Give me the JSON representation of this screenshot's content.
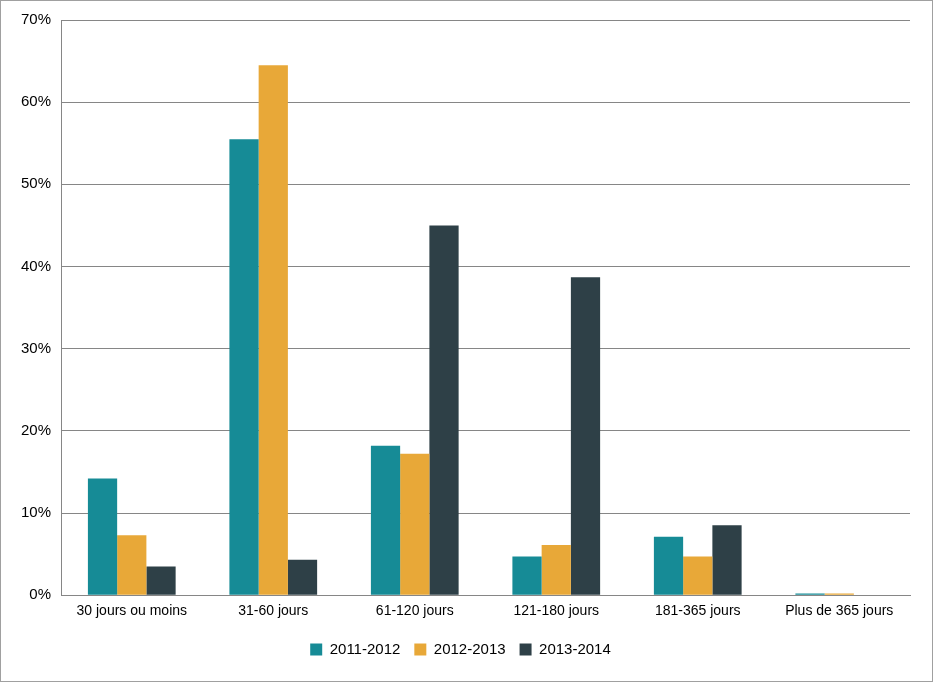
{
  "chart_data": {
    "type": "bar",
    "categories": [
      "30 jours ou moins",
      "31-60 jours",
      "61-120 jours",
      "121-180 jours",
      "181-365 jours",
      "Plus de 365 jours"
    ],
    "series": [
      {
        "name": "2011-2012",
        "color": "#168b96",
        "values": [
          14.2,
          55.5,
          18.2,
          4.7,
          7.1,
          0.2
        ]
      },
      {
        "name": "2012-2013",
        "color": "#e8a838",
        "values": [
          7.3,
          64.5,
          17.2,
          6.1,
          4.7,
          0.2
        ]
      },
      {
        "name": "2013-2014",
        "color": "#2e4047",
        "values": [
          3.5,
          4.3,
          45.0,
          38.7,
          8.5,
          0
        ]
      }
    ],
    "ylim": [
      0,
      70
    ],
    "yticks": [
      {
        "value": 0,
        "label": "0%"
      },
      {
        "value": 10,
        "label": "10%"
      },
      {
        "value": 20,
        "label": "20%"
      },
      {
        "value": 30,
        "label": "30%"
      },
      {
        "value": 40,
        "label": "40%"
      },
      {
        "value": 50,
        "label": "50%"
      },
      {
        "value": 60,
        "label": "60%"
      },
      {
        "value": 70,
        "label": "70%"
      }
    ],
    "grid": true,
    "legend": "bottom"
  }
}
